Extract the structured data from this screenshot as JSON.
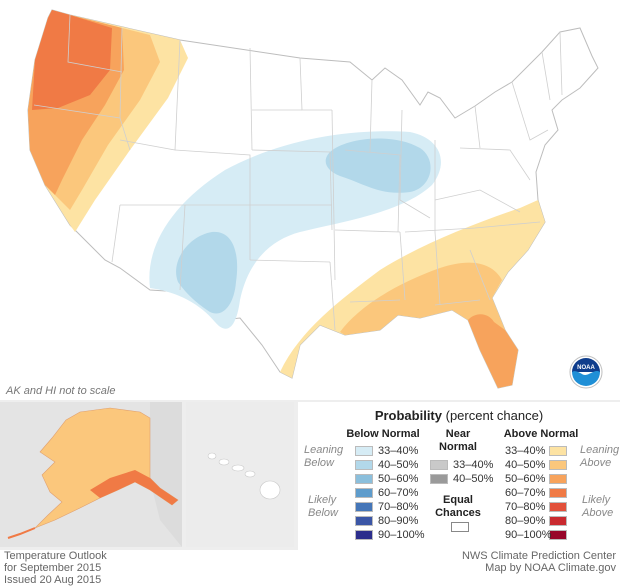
{
  "map": {
    "title": "Temperature Outlook",
    "period": "for September 2015",
    "issued": "Issued 20 Aug 2015",
    "credit_line1": "NWS Climate Prediction Center",
    "credit_line2": "Map by NOAA Climate.gov",
    "scale_note": "AK and HI not to scale",
    "logo_text": "NOAA"
  },
  "legend": {
    "title_bold": "Probability",
    "title_rest": "(percent chance)",
    "below_header": "Below Normal",
    "near_header_1": "Near",
    "near_header_2": "Normal",
    "above_header": "Above Normal",
    "equal_1": "Equal",
    "equal_2": "Chances",
    "leaning_below_1": "Leaning",
    "leaning_below_2": "Below",
    "likely_below_1": "Likely",
    "likely_below_2": "Below",
    "leaning_above_1": "Leaning",
    "leaning_above_2": "Above",
    "likely_above_1": "Likely",
    "likely_above_2": "Above",
    "below": [
      {
        "label": "33–40%",
        "color": "#d6ecf5"
      },
      {
        "label": "40–50%",
        "color": "#b2d8ea"
      },
      {
        "label": "50–60%",
        "color": "#8bbfdc"
      },
      {
        "label": "60–70%",
        "color": "#5e9ccc"
      },
      {
        "label": "70–80%",
        "color": "#4576b8"
      },
      {
        "label": "80–90%",
        "color": "#3b56a6"
      },
      {
        "label": "90–100%",
        "color": "#2c2e8c"
      }
    ],
    "near": [
      {
        "label": "33–40%",
        "color": "#c9c9c9"
      },
      {
        "label": "40–50%",
        "color": "#9a9a9a"
      }
    ],
    "above": [
      {
        "label": "33–40%",
        "color": "#fde3a3"
      },
      {
        "label": "40–50%",
        "color": "#fbc77c"
      },
      {
        "label": "50–60%",
        "color": "#f7a35c"
      },
      {
        "label": "60–70%",
        "color": "#f07a45"
      },
      {
        "label": "70–80%",
        "color": "#e2503a"
      },
      {
        "label": "80–90%",
        "color": "#c92a2f"
      },
      {
        "label": "90–100%",
        "color": "#98062a"
      }
    ]
  }
}
